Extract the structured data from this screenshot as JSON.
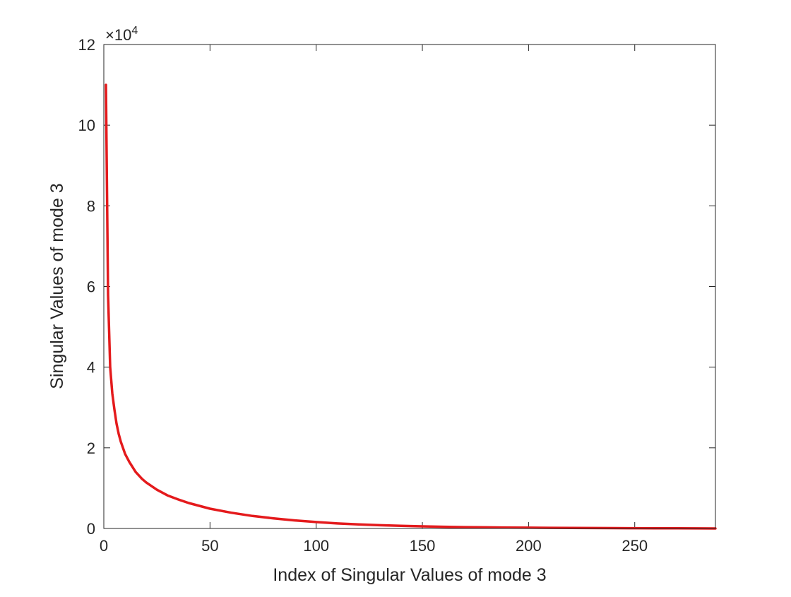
{
  "chart_data": {
    "type": "line",
    "title": "",
    "xlabel": "Index of Singular Values of mode 3",
    "ylabel": "Singular Values of mode 3",
    "xlim": [
      0,
      288
    ],
    "ylim": [
      0,
      120000
    ],
    "x_ticks": [
      0,
      50,
      100,
      150,
      200,
      250
    ],
    "x_tick_labels": [
      "0",
      "50",
      "100",
      "150",
      "200",
      "250"
    ],
    "y_ticks": [
      0,
      20000,
      40000,
      60000,
      80000,
      100000,
      120000
    ],
    "y_tick_labels": [
      "0",
      "2",
      "4",
      "6",
      "8",
      "10",
      "12"
    ],
    "y_exponent_label": "×10",
    "y_exponent_power": "4",
    "grid": false,
    "legend": "none",
    "series": [
      {
        "color": "#e41a1c",
        "x": [
          1,
          2,
          3,
          4,
          5,
          6,
          7,
          8,
          10,
          12,
          15,
          18,
          20,
          25,
          30,
          35,
          40,
          50,
          60,
          70,
          80,
          90,
          100,
          110,
          120,
          130,
          140,
          150,
          160,
          170,
          180,
          190,
          200,
          210,
          220,
          230,
          240,
          250,
          260,
          270,
          280,
          288
        ],
        "y": [
          110000,
          58000,
          40000,
          33500,
          29500,
          26000,
          23500,
          21500,
          18500,
          16500,
          14000,
          12300,
          11400,
          9600,
          8200,
          7200,
          6300,
          4900,
          3900,
          3100,
          2500,
          2000,
          1600,
          1250,
          1000,
          800,
          650,
          520,
          420,
          340,
          280,
          230,
          190,
          160,
          130,
          105,
          85,
          65,
          45,
          30,
          15,
          0
        ]
      }
    ]
  }
}
